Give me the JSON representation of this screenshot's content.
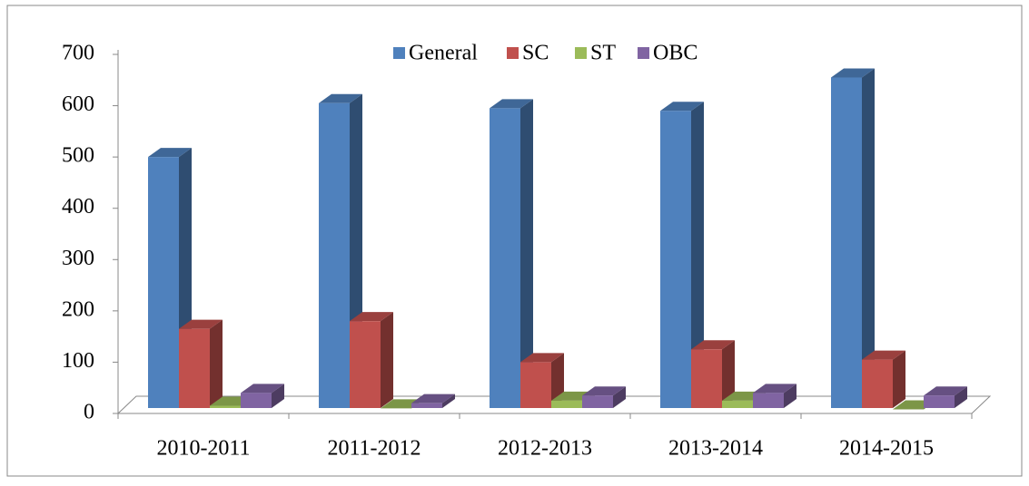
{
  "chart_data": {
    "type": "bar3d",
    "categories": [
      "2010-2011",
      "2011-2012",
      "2012-2013",
      "2013-2014",
      "2014-2015"
    ],
    "series": [
      {
        "name": "General",
        "color": "#4f81bd",
        "values": [
          500,
          605,
          595,
          590,
          655
        ]
      },
      {
        "name": "SC",
        "color": "#c0504d",
        "values": [
          165,
          180,
          100,
          125,
          105
        ]
      },
      {
        "name": "ST",
        "color": "#9bbb59",
        "values": [
          15,
          10,
          25,
          25,
          8
        ]
      },
      {
        "name": "OBC",
        "color": "#8064a2",
        "values": [
          40,
          20,
          35,
          40,
          35
        ]
      }
    ],
    "ylim": [
      0,
      700
    ],
    "yticks": [
      0,
      100,
      200,
      300,
      400,
      500,
      600,
      700
    ],
    "legend": "top",
    "grid": false
  }
}
